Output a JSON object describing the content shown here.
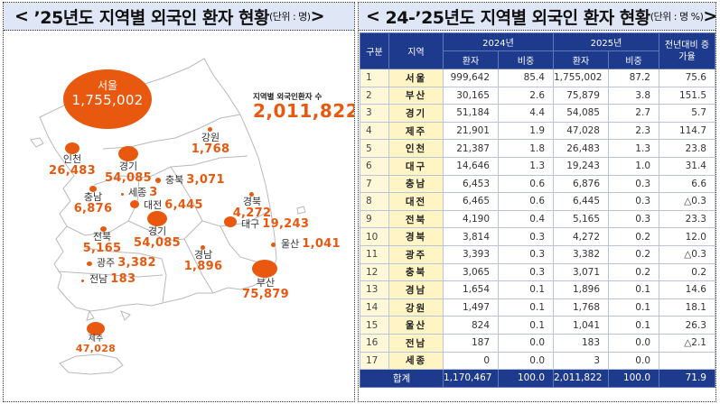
{
  "left_panel": {
    "title_prefix": "< ",
    "title_main": "’25년도 지역별 외국인 환자 현황",
    "title_unit": "(단위 : 명)",
    "title_suffix": ">",
    "map": {
      "total_caption": "지역별 외국인환자 수",
      "total_value": "2,011,822",
      "regions": [
        {
          "name": "서울",
          "value": "1,755,002"
        },
        {
          "name": "강원",
          "value": "1,768"
        },
        {
          "name": "인천",
          "value": "26,483"
        },
        {
          "name": "경기",
          "value": "54,085"
        },
        {
          "name": "충북",
          "value": "3,071"
        },
        {
          "name": "세종",
          "value": "3"
        },
        {
          "name": "충남",
          "value": "6,876"
        },
        {
          "name": "대전",
          "value": "6,445"
        },
        {
          "name": "경북",
          "value": "4,272"
        },
        {
          "name": "경기",
          "value": "54,085"
        },
        {
          "name": "대구",
          "value": "19,243"
        },
        {
          "name": "전북",
          "value": "5,165"
        },
        {
          "name": "울산",
          "value": "1,041"
        },
        {
          "name": "경남",
          "value": "1,896"
        },
        {
          "name": "광주",
          "value": "3,382"
        },
        {
          "name": "전남",
          "value": "183"
        },
        {
          "name": "부산",
          "value": "75,879"
        },
        {
          "name": "제주",
          "value": "47,028"
        }
      ]
    }
  },
  "right_panel": {
    "title_prefix": "< ",
    "title_main": "24-’25년도 지역별 외국인 환자 현황",
    "title_unit": "(단위 : 명 %)",
    "title_suffix": " >",
    "table": {
      "headers": {
        "no": "구분",
        "region": "지역",
        "year1": "2024년",
        "year2": "2025년",
        "patients": "환자",
        "share": "비중",
        "growth": "전년대비 증가율"
      },
      "rows": [
        {
          "no": "1",
          "region": "서울",
          "p2024": "999,642",
          "s2024": "85.4",
          "p2025": "1,755,002",
          "s2025": "87.2",
          "growth": "75.6"
        },
        {
          "no": "2",
          "region": "부산",
          "p2024": "30,165",
          "s2024": "2.6",
          "p2025": "75,879",
          "s2025": "3.8",
          "growth": "151.5"
        },
        {
          "no": "3",
          "region": "경기",
          "p2024": "51,184",
          "s2024": "4.4",
          "p2025": "54,085",
          "s2025": "2.7",
          "growth": "5.7"
        },
        {
          "no": "4",
          "region": "제주",
          "p2024": "21,901",
          "s2024": "1.9",
          "p2025": "47,028",
          "s2025": "2.3",
          "growth": "114.7"
        },
        {
          "no": "5",
          "region": "인천",
          "p2024": "21,387",
          "s2024": "1.8",
          "p2025": "26,483",
          "s2025": "1.3",
          "growth": "23.8"
        },
        {
          "no": "6",
          "region": "대구",
          "p2024": "14,646",
          "s2024": "1.3",
          "p2025": "19,243",
          "s2025": "1.0",
          "growth": "31.4"
        },
        {
          "no": "7",
          "region": "충남",
          "p2024": "6,453",
          "s2024": "0.6",
          "p2025": "6,876",
          "s2025": "0.3",
          "growth": "6.6"
        },
        {
          "no": "8",
          "region": "대전",
          "p2024": "6,465",
          "s2024": "0.6",
          "p2025": "6,445",
          "s2025": "0.3",
          "growth": "△0.3"
        },
        {
          "no": "9",
          "region": "전북",
          "p2024": "4,190",
          "s2024": "0.4",
          "p2025": "5,165",
          "s2025": "0.3",
          "growth": "23.3"
        },
        {
          "no": "10",
          "region": "경북",
          "p2024": "3,814",
          "s2024": "0.3",
          "p2025": "4,272",
          "s2025": "0.2",
          "growth": "12.0"
        },
        {
          "no": "11",
          "region": "광주",
          "p2024": "3,393",
          "s2024": "0.3",
          "p2025": "3,382",
          "s2025": "0.2",
          "growth": "△0.3"
        },
        {
          "no": "12",
          "region": "충북",
          "p2024": "3,065",
          "s2024": "0.3",
          "p2025": "3,071",
          "s2025": "0.2",
          "growth": "0.2"
        },
        {
          "no": "13",
          "region": "경남",
          "p2024": "1,654",
          "s2024": "0.1",
          "p2025": "1,896",
          "s2025": "0.1",
          "growth": "14.6"
        },
        {
          "no": "14",
          "region": "강원",
          "p2024": "1,497",
          "s2024": "0.1",
          "p2025": "1,768",
          "s2025": "0.1",
          "growth": "18.1"
        },
        {
          "no": "15",
          "region": "울산",
          "p2024": "824",
          "s2024": "0.1",
          "p2025": "1,041",
          "s2025": "0.1",
          "growth": "26.3"
        },
        {
          "no": "16",
          "region": "전남",
          "p2024": "187",
          "s2024": "0.0",
          "p2025": "183",
          "s2025": "0.0",
          "growth": "△2.1"
        },
        {
          "no": "17",
          "region": "세종",
          "p2024": "0",
          "s2024": "0.0",
          "p2025": "3",
          "s2025": "0.0",
          "growth": ""
        }
      ],
      "total": {
        "label": "합계",
        "p2024": "1,170,467",
        "s2024": "100.0",
        "p2025": "2,011,822",
        "s2025": "100.0",
        "growth": "71.9"
      }
    }
  },
  "colors": {
    "accent_orange": "#e8580f",
    "header_navy": "#1d3a8c",
    "title_bg": "#dfe6f6",
    "region_cell_bg": "#fff4c4"
  }
}
